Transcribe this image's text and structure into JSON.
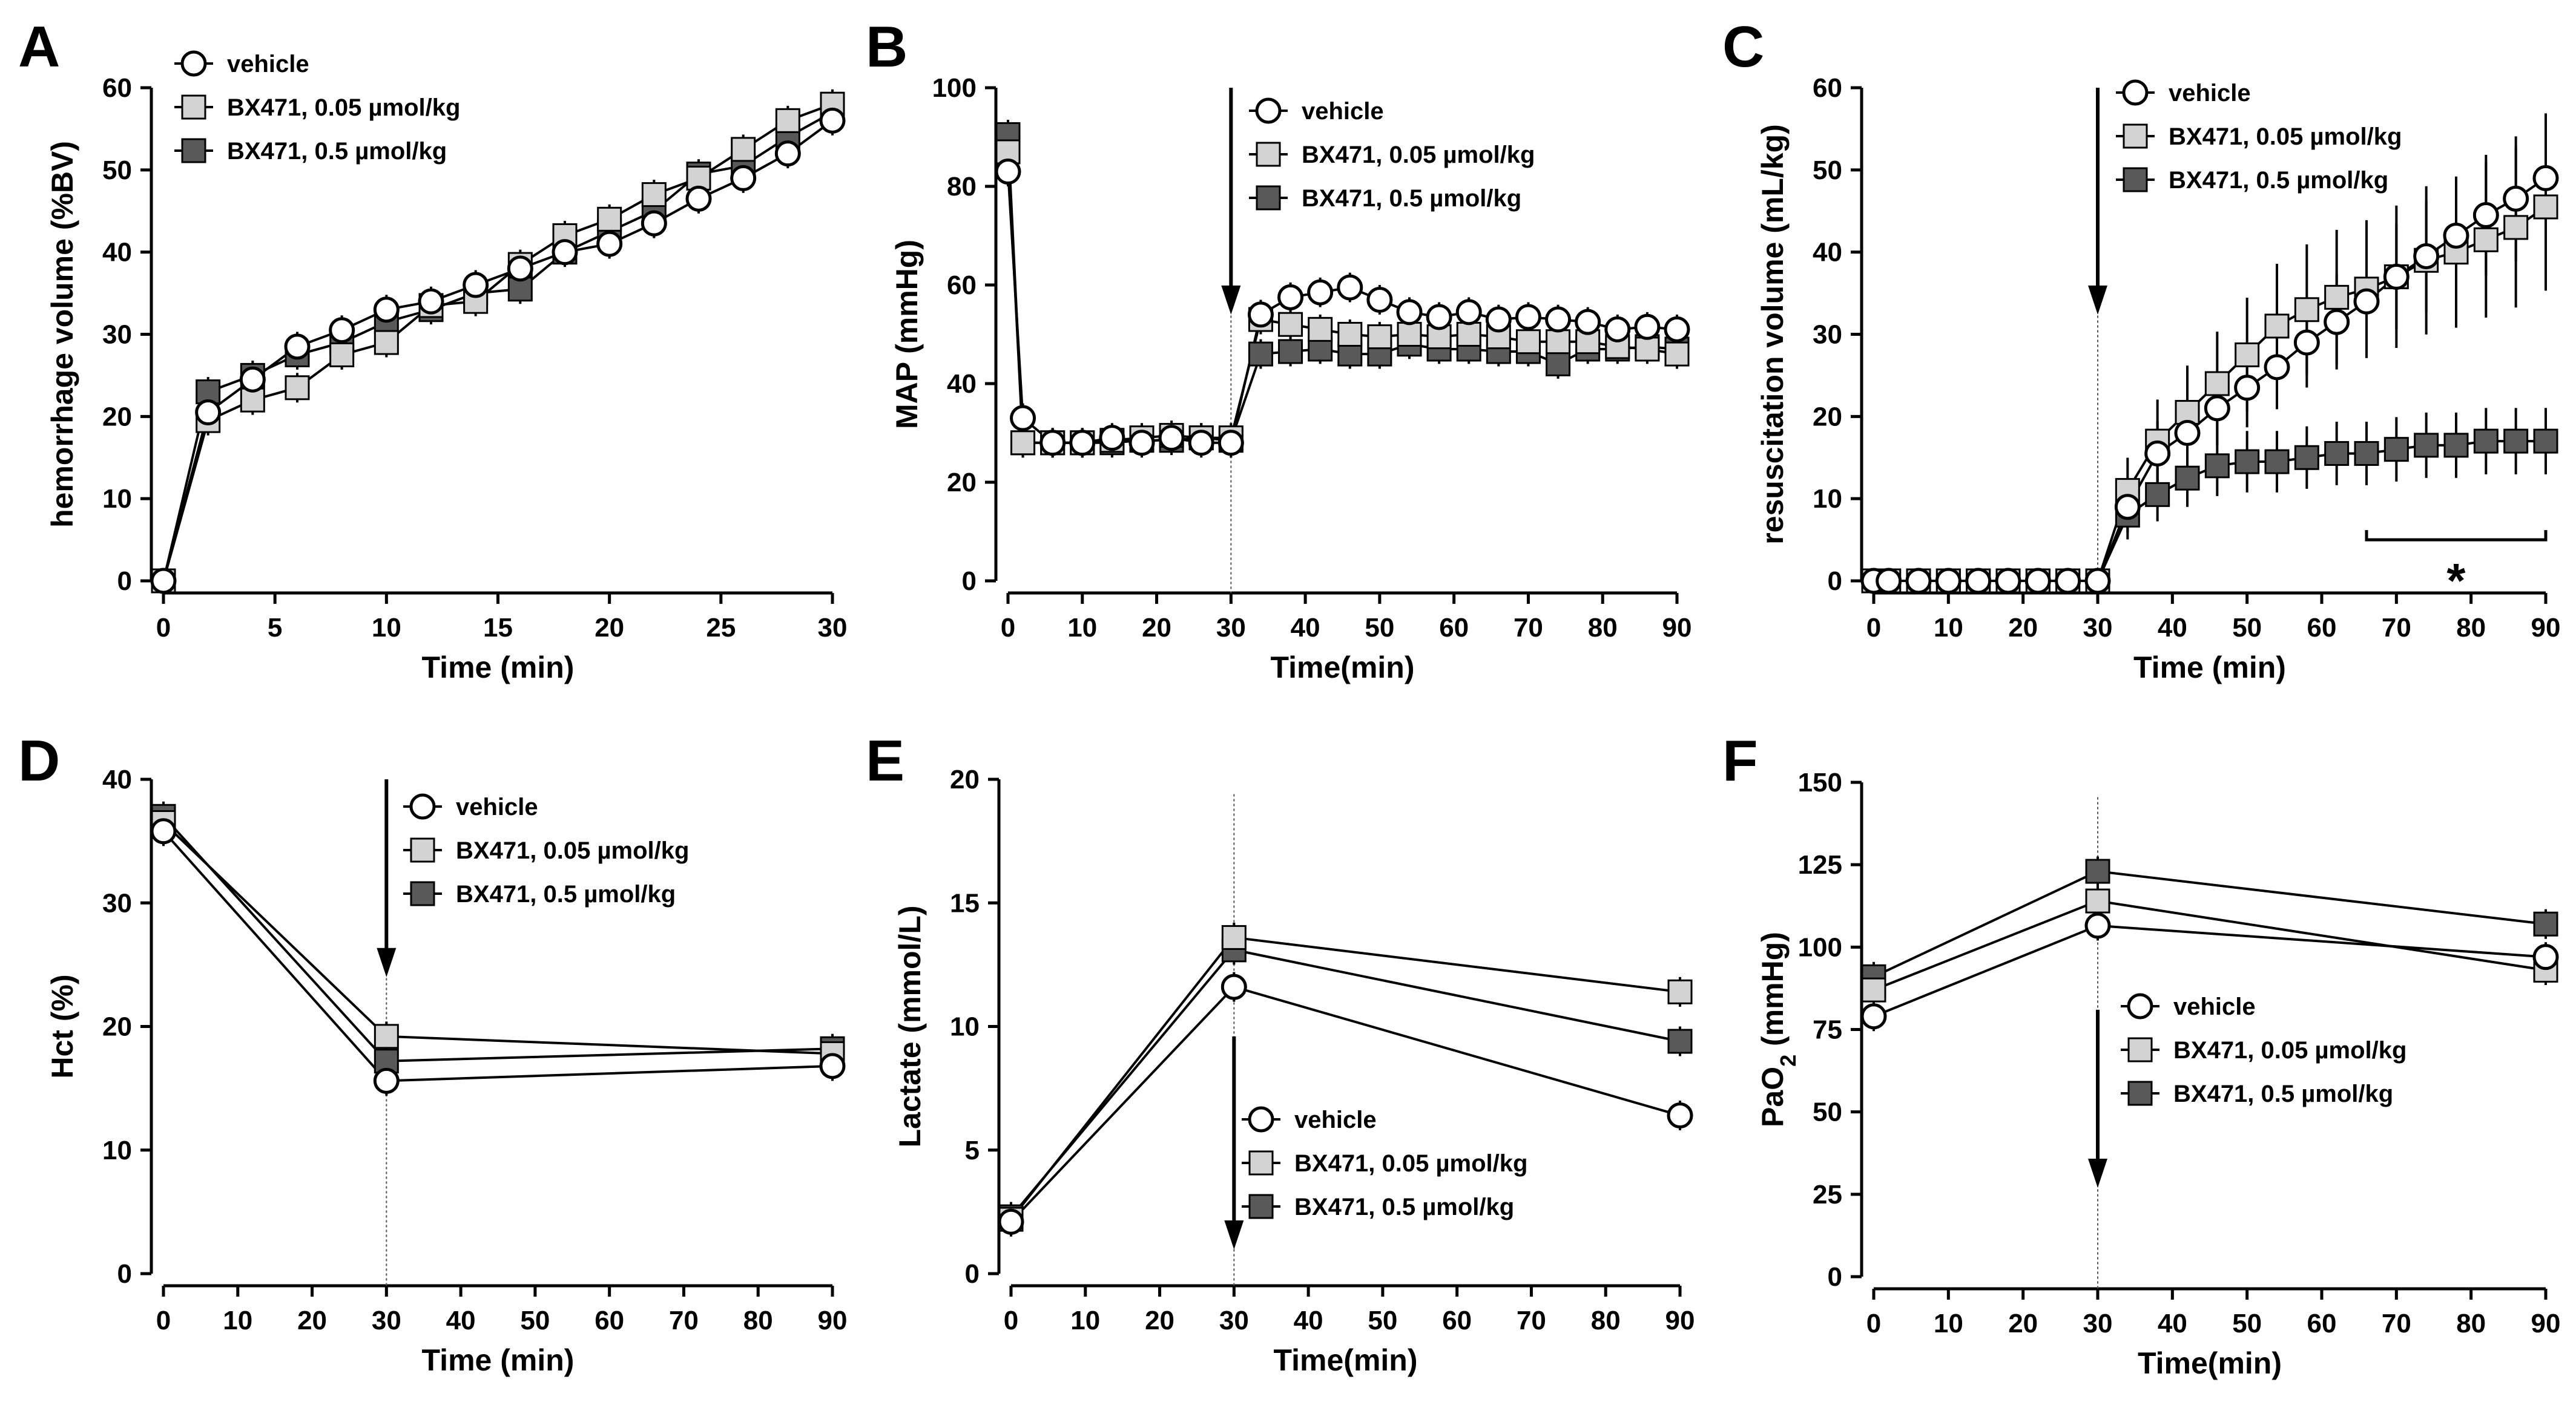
{
  "colors": {
    "vehicle": "#ffffff",
    "low_dose": "#d3d3d3",
    "high_dose": "#595959",
    "stroke": "#000000"
  },
  "legend_labels": [
    "vehicle",
    "BX471, 0.05 µmol/kg",
    "BX471, 0.5 µmol/kg"
  ],
  "chart_data": [
    {
      "panel": "A",
      "type": "line",
      "xlabel": "Time (min)",
      "ylabel": "hemorrhage volume (%BV)",
      "xlim": [
        0,
        30
      ],
      "ylim": [
        0,
        60
      ],
      "xticks": [
        "0",
        "5",
        "10",
        "15",
        "20",
        "25",
        "30"
      ],
      "yticks": [
        "0",
        "10",
        "20",
        "30",
        "40",
        "50",
        "60"
      ],
      "x": [
        0,
        2,
        4,
        6,
        8,
        10,
        12,
        14,
        16,
        18,
        20,
        22,
        24,
        26,
        28,
        30
      ],
      "series": [
        {
          "name": "vehicle",
          "values": [
            0,
            20.5,
            24.5,
            28.5,
            30.5,
            33,
            34,
            36,
            38,
            40,
            41,
            43.5,
            46.5,
            49,
            52,
            56
          ]
        },
        {
          "name": "BX471, 0.05 µmol/kg",
          "values": [
            0,
            19.5,
            22,
            23.5,
            27.5,
            29,
            33.5,
            34,
            38.5,
            42,
            44,
            47,
            49,
            52.5,
            56,
            58
          ]
        },
        {
          "name": "BX471, 0.5 µmol/kg",
          "values": [
            0,
            23,
            25,
            27.5,
            29,
            31.5,
            33,
            35,
            35.5,
            40,
            42.5,
            45,
            49.5,
            50.5,
            54,
            57
          ]
        }
      ],
      "annotations": []
    },
    {
      "panel": "B",
      "type": "line",
      "xlabel": "Time(min)",
      "ylabel": "MAP (mmHg)",
      "xlim": [
        0,
        90
      ],
      "ylim": [
        0,
        100
      ],
      "xticks": [
        "0",
        "10",
        "20",
        "30",
        "40",
        "50",
        "60",
        "70",
        "80",
        "90"
      ],
      "yticks": [
        "0",
        "20",
        "40",
        "60",
        "80",
        "100"
      ],
      "x": [
        0,
        2,
        6,
        10,
        14,
        18,
        22,
        26,
        30,
        34,
        38,
        42,
        46,
        50,
        54,
        58,
        62,
        66,
        70,
        74,
        78,
        82,
        86,
        90
      ],
      "series": [
        {
          "name": "vehicle",
          "values": [
            83,
            33,
            28,
            28,
            29,
            28,
            29,
            28,
            28,
            54,
            57.5,
            58.5,
            59.5,
            57,
            54.5,
            53.5,
            54.5,
            53,
            53.5,
            53,
            52.5,
            51,
            51.5,
            51
          ]
        },
        {
          "name": "BX471, 0.05 µmol/kg",
          "values": [
            87,
            28,
            28,
            28,
            28.5,
            29,
            29.5,
            29,
            29,
            53,
            52,
            51,
            50,
            49.5,
            50,
            49.5,
            50,
            49.5,
            48.5,
            48.5,
            48.5,
            47.5,
            47,
            46
          ]
        },
        {
          "name": "BX471, 0.5 µmol/kg",
          "values": [
            90.5,
            28,
            28,
            28,
            28,
            28.5,
            28.5,
            29,
            28.5,
            46,
            46.5,
            47,
            46,
            46,
            48,
            47,
            47,
            46.5,
            46.5,
            44,
            47,
            47,
            47.5,
            47
          ]
        }
      ],
      "annotations": [
        {
          "kind": "arrow",
          "x": 30
        },
        {
          "kind": "vline",
          "x": 30
        }
      ]
    },
    {
      "panel": "C",
      "type": "line",
      "xlabel": "Time (min)",
      "ylabel": "resuscitation volume (mL/kg)",
      "xlim": [
        0,
        90
      ],
      "ylim": [
        0,
        60
      ],
      "xticks": [
        "0",
        "10",
        "20",
        "30",
        "40",
        "50",
        "60",
        "70",
        "80",
        "90"
      ],
      "yticks": [
        "0",
        "10",
        "20",
        "30",
        "40",
        "50",
        "60"
      ],
      "x": [
        0,
        2,
        6,
        10,
        14,
        18,
        22,
        26,
        30,
        34,
        38,
        42,
        46,
        50,
        54,
        58,
        62,
        66,
        70,
        74,
        78,
        82,
        86,
        90
      ],
      "series": [
        {
          "name": "vehicle",
          "values": [
            0,
            0,
            0,
            0,
            0,
            0,
            0,
            0,
            0,
            9,
            15.5,
            18,
            21,
            23.5,
            26,
            29,
            31.5,
            34,
            37,
            39.5,
            42,
            44.5,
            46.5,
            49
          ]
        },
        {
          "name": "BX471, 0.05 µmol/kg",
          "values": [
            0,
            0,
            0,
            0,
            0,
            0,
            0,
            0,
            0,
            11,
            17,
            20.5,
            24,
            27.5,
            31,
            33,
            34.5,
            35.5,
            37,
            39,
            40,
            41.5,
            43,
            45.5
          ]
        },
        {
          "name": "BX471, 0.5 µmol/kg",
          "values": [
            0,
            0,
            0,
            0,
            0,
            0,
            0,
            0,
            0,
            8,
            10.5,
            12.5,
            14,
            14.5,
            14.5,
            15,
            15.5,
            15.5,
            16,
            16.5,
            16.5,
            17,
            17,
            17
          ]
        }
      ],
      "annotations": [
        {
          "kind": "arrow",
          "x": 30
        },
        {
          "kind": "vline",
          "x": 30
        },
        {
          "kind": "bracket",
          "x_from": 66,
          "x_to": 90,
          "text": "*"
        }
      ]
    },
    {
      "panel": "D",
      "type": "line",
      "xlabel": "Time (min)",
      "ylabel": "Hct (%)",
      "xlim": [
        0,
        90
      ],
      "ylim": [
        0,
        40
      ],
      "xticks": [
        "0",
        "10",
        "20",
        "30",
        "40",
        "50",
        "60",
        "70",
        "80",
        "90"
      ],
      "yticks": [
        "0",
        "10",
        "20",
        "30",
        "40"
      ],
      "x": [
        0,
        30,
        90
      ],
      "series": [
        {
          "name": "vehicle",
          "values": [
            35.8,
            15.6,
            16.8
          ]
        },
        {
          "name": "BX471, 0.05 µmol/kg",
          "values": [
            36.5,
            19.2,
            17.8
          ]
        },
        {
          "name": "BX471, 0.5 µmol/kg",
          "values": [
            37,
            17.2,
            18.2
          ]
        }
      ],
      "annotations": [
        {
          "kind": "arrow",
          "x": 30
        },
        {
          "kind": "vline",
          "x": 30
        }
      ]
    },
    {
      "panel": "E",
      "type": "line",
      "xlabel": "Time(min)",
      "ylabel": "Lactate (mmol/L)",
      "xlim": [
        0,
        90
      ],
      "ylim": [
        0,
        20
      ],
      "xticks": [
        "0",
        "10",
        "20",
        "30",
        "40",
        "50",
        "60",
        "70",
        "80",
        "90"
      ],
      "yticks": [
        "0",
        "5",
        "10",
        "15",
        "20"
      ],
      "x": [
        0,
        30,
        90
      ],
      "series": [
        {
          "name": "vehicle",
          "values": [
            2.1,
            11.6,
            6.4
          ]
        },
        {
          "name": "BX471, 0.05 µmol/kg",
          "values": [
            2.2,
            13.6,
            11.4
          ]
        },
        {
          "name": "BX471, 0.5 µmol/kg",
          "values": [
            2.3,
            13.1,
            9.4
          ]
        }
      ],
      "annotations": [
        {
          "kind": "arrow",
          "x": 30
        },
        {
          "kind": "vline",
          "x": 30
        }
      ]
    },
    {
      "panel": "F",
      "type": "line",
      "xlabel": "Time(min)",
      "ylabel": "PaO",
      "ylabel_subscript": "2",
      "ylabel_suffix": " (mmHg)",
      "xlim": [
        0,
        90
      ],
      "ylim": [
        0,
        150
      ],
      "xticks": [
        "0",
        "10",
        "20",
        "30",
        "40",
        "50",
        "60",
        "70",
        "80",
        "90"
      ],
      "yticks": [
        "0",
        "25",
        "50",
        "75",
        "100",
        "125",
        "150"
      ],
      "x": [
        0,
        30,
        90
      ],
      "series": [
        {
          "name": "vehicle",
          "values": [
            79,
            106.5,
            97
          ]
        },
        {
          "name": "BX471, 0.05 µmol/kg",
          "values": [
            87,
            114,
            93
          ]
        },
        {
          "name": "BX471, 0.5 µmol/kg",
          "values": [
            91,
            123,
            107
          ]
        }
      ],
      "annotations": [
        {
          "kind": "arrow",
          "x": 30
        },
        {
          "kind": "vline",
          "x": 30
        }
      ]
    }
  ]
}
